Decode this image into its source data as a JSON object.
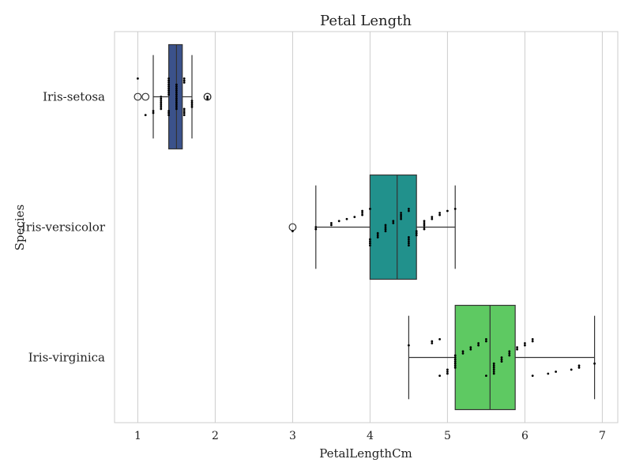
{
  "chart_data": {
    "type": "box",
    "title": "Petal Length",
    "xlabel": "PetalLengthCm",
    "ylabel": "Species",
    "xlim": [
      0.7,
      7.2
    ],
    "xticks": [
      1,
      2,
      3,
      4,
      5,
      6,
      7
    ],
    "grid": "vertical",
    "orientation": "horizontal",
    "categories": [
      "Iris-setosa",
      "Iris-versicolor",
      "Iris-virginica"
    ],
    "colors": [
      "#3b528b",
      "#21918c",
      "#5ec962"
    ],
    "boxes": [
      {
        "category": "Iris-setosa",
        "whislo": 1.2,
        "q1": 1.4,
        "median": 1.5,
        "q3": 1.575,
        "whishi": 1.7,
        "fliers": [
          1.0,
          1.1,
          1.9,
          1.9
        ]
      },
      {
        "category": "Iris-versicolor",
        "whislo": 3.3,
        "q1": 4.0,
        "median": 4.35,
        "q3": 4.6,
        "whishi": 5.1,
        "fliers": [
          3.0
        ]
      },
      {
        "category": "Iris-virginica",
        "whislo": 4.5,
        "q1": 5.1,
        "median": 5.55,
        "q3": 5.875,
        "whishi": 6.9,
        "fliers": []
      }
    ],
    "points": [
      [
        1.0,
        1.1,
        1.2,
        1.2,
        1.3,
        1.3,
        1.3,
        1.3,
        1.3,
        1.3,
        1.3,
        1.4,
        1.4,
        1.4,
        1.4,
        1.4,
        1.4,
        1.4,
        1.4,
        1.4,
        1.4,
        1.4,
        1.4,
        1.5,
        1.5,
        1.5,
        1.5,
        1.5,
        1.5,
        1.5,
        1.5,
        1.5,
        1.5,
        1.5,
        1.5,
        1.5,
        1.6,
        1.6,
        1.6,
        1.6,
        1.6,
        1.6,
        1.6,
        1.7,
        1.7,
        1.7,
        1.7,
        1.9,
        1.9
      ],
      [
        3.0,
        3.3,
        3.3,
        3.5,
        3.5,
        3.6,
        3.7,
        3.8,
        3.9,
        3.9,
        3.9,
        4.0,
        4.0,
        4.0,
        4.0,
        4.0,
        4.1,
        4.1,
        4.1,
        4.2,
        4.2,
        4.2,
        4.2,
        4.3,
        4.3,
        4.4,
        4.4,
        4.4,
        4.4,
        4.5,
        4.5,
        4.5,
        4.5,
        4.5,
        4.5,
        4.5,
        4.6,
        4.6,
        4.6,
        4.7,
        4.7,
        4.7,
        4.7,
        4.7,
        4.8,
        4.8,
        4.9,
        4.9,
        5.0,
        5.1
      ],
      [
        4.5,
        4.8,
        4.8,
        4.9,
        4.9,
        5.0,
        5.0,
        5.0,
        5.1,
        5.1,
        5.1,
        5.1,
        5.1,
        5.1,
        5.1,
        5.2,
        5.2,
        5.3,
        5.3,
        5.4,
        5.4,
        5.5,
        5.5,
        5.5,
        5.6,
        5.6,
        5.6,
        5.6,
        5.6,
        5.6,
        5.7,
        5.7,
        5.7,
        5.8,
        5.8,
        5.8,
        5.9,
        5.9,
        6.0,
        6.0,
        6.1,
        6.1,
        6.1,
        6.3,
        6.4,
        6.6,
        6.7,
        6.7,
        6.9
      ]
    ]
  }
}
